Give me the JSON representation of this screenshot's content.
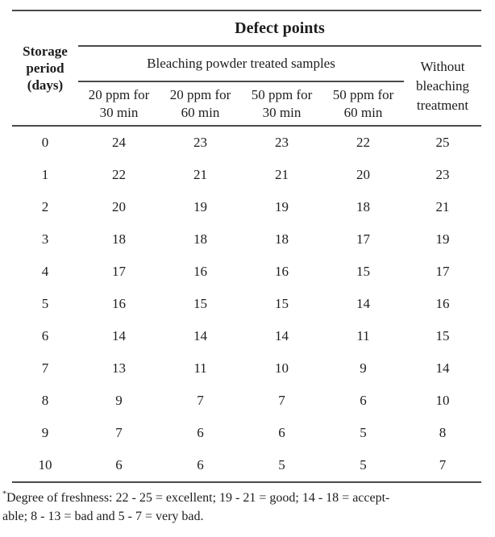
{
  "table": {
    "title": "Defect points",
    "row_header": {
      "line1": "Storage",
      "line2": "period",
      "line3": "(days)"
    },
    "group_header": "Bleaching powder treated samples",
    "col_headers": [
      {
        "line1": "20 ppm for",
        "line2": "30 min"
      },
      {
        "line1": "20 ppm for",
        "line2": "60 min"
      },
      {
        "line1": "50 ppm for",
        "line2": "30 min"
      },
      {
        "line1": "50 ppm for",
        "line2": "60 min"
      }
    ],
    "last_col_header": {
      "line1": "Without",
      "line2": "bleaching",
      "line3": "treatment"
    },
    "rows": [
      {
        "day": "0",
        "values": [
          "24",
          "23",
          "23",
          "22",
          "25"
        ]
      },
      {
        "day": "1",
        "values": [
          "22",
          "21",
          "21",
          "20",
          "23"
        ]
      },
      {
        "day": "2",
        "values": [
          "20",
          "19",
          "19",
          "18",
          "21"
        ]
      },
      {
        "day": "3",
        "values": [
          "18",
          "18",
          "18",
          "17",
          "19"
        ]
      },
      {
        "day": "4",
        "values": [
          "17",
          "16",
          "16",
          "15",
          "17"
        ]
      },
      {
        "day": "5",
        "values": [
          "16",
          "15",
          "15",
          "14",
          "16"
        ]
      },
      {
        "day": "6",
        "values": [
          "14",
          "14",
          "14",
          "11",
          "15"
        ]
      },
      {
        "day": "7",
        "values": [
          "13",
          "11",
          "10",
          "9",
          "14"
        ]
      },
      {
        "day": "8",
        "values": [
          "9",
          "7",
          "7",
          "6",
          "10"
        ]
      },
      {
        "day": "9",
        "values": [
          "7",
          "6",
          "6",
          "5",
          "8"
        ]
      },
      {
        "day": "10",
        "values": [
          "6",
          "6",
          "5",
          "5",
          "7"
        ]
      }
    ]
  },
  "footnote": {
    "marker": "*",
    "line1": "Degree of freshness: 22 - 25 = excellent; 19 - 21 = good; 14 - 18 = accept-",
    "line2": "able; 8 - 13 = bad and 5 - 7 = very bad."
  },
  "colors": {
    "background": "#ffffff",
    "text": "#1d1d1d",
    "rule": "#4a4a4a"
  }
}
